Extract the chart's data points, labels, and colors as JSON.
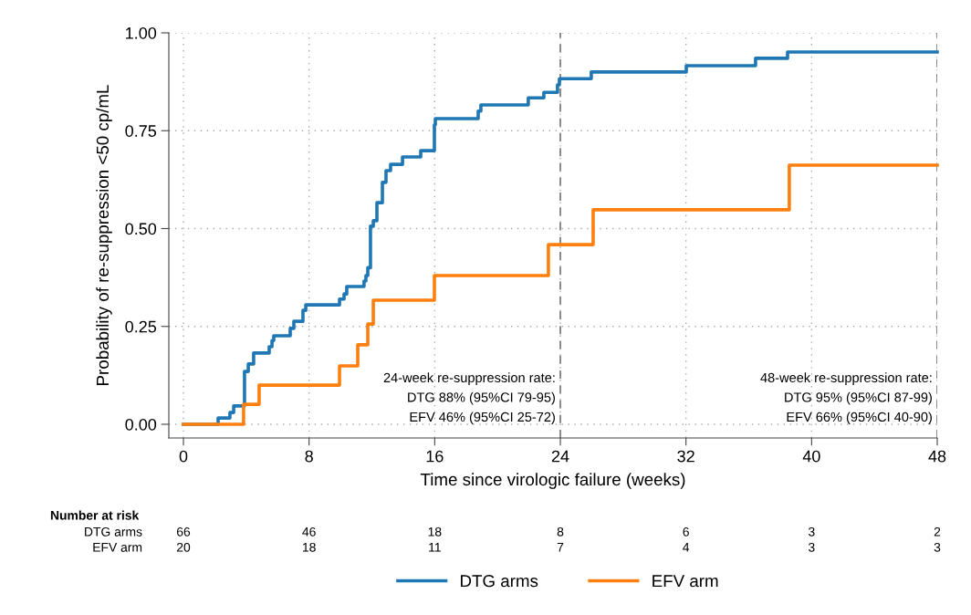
{
  "chart_data": {
    "type": "step",
    "xlabel": "Time since virologic failure (weeks)",
    "ylabel": "Probability of re-suppression <50 cp/mL",
    "xlim": [
      -0.93,
      48
    ],
    "ylim": [
      -0.035,
      1.0
    ],
    "xticks": [
      0,
      8,
      16,
      24,
      32,
      40,
      48
    ],
    "yticks": [
      {
        "value": 0,
        "label": "0.00"
      },
      {
        "value": 0.25,
        "label": "0.25"
      },
      {
        "value": 0.5,
        "label": "0.50"
      },
      {
        "value": 0.75,
        "label": "0.75"
      },
      {
        "value": 1,
        "label": "1.00"
      }
    ],
    "grid": true,
    "legend": "bottom",
    "line_style": "solid",
    "marker": "none",
    "series": [
      {
        "name": "DTG arms",
        "color": "#1f77b4",
        "x": [
          0,
          2.21,
          2.96,
          3.2,
          3.89,
          4.13,
          4.47,
          5.46,
          5.64,
          5.75,
          6.8,
          7.03,
          7.61,
          7.79,
          9.94,
          10.23,
          10.4,
          11.5,
          11.62,
          11.74,
          11.91,
          12.09,
          12.32,
          12.67,
          12.9,
          13.19,
          13.95,
          15.11,
          15.98,
          16.04,
          18.77,
          18.94,
          21.96,
          22.95,
          23.82,
          23.94,
          25.97,
          32.02,
          36.43,
          38.47,
          48
        ],
        "values": [
          0,
          0.016,
          0.03,
          0.047,
          0.135,
          0.154,
          0.182,
          0.198,
          0.214,
          0.226,
          0.245,
          0.263,
          0.291,
          0.305,
          0.32,
          0.333,
          0.352,
          0.366,
          0.38,
          0.4,
          0.506,
          0.52,
          0.566,
          0.618,
          0.648,
          0.664,
          0.683,
          0.699,
          0.765,
          0.781,
          0.8,
          0.816,
          0.834,
          0.848,
          0.867,
          0.883,
          0.9,
          0.916,
          0.935,
          0.951,
          0.951
        ]
      },
      {
        "name": "EFV arm",
        "color": "#ff7f0e",
        "x": [
          0,
          3.83,
          4.82,
          9.94,
          11.1,
          11.74,
          12.09,
          15.98,
          23.24,
          26.09,
          38.58,
          48
        ],
        "values": [
          0,
          0.051,
          0.1,
          0.149,
          0.203,
          0.256,
          0.317,
          0.38,
          0.459,
          0.548,
          0.662,
          0.662
        ]
      }
    ],
    "ref_lines": [
      {
        "axis": "x",
        "value": 24,
        "color": "#808080",
        "line_style": "dashed",
        "label": "24-week re-suppression rate:\nDTG 88% (95%CI 79-95)\nEFV 46% (95%CI 25-72)"
      },
      {
        "axis": "x",
        "value": 48,
        "color": "#808080",
        "line_style": "dashed",
        "label": "48-week re-suppression rate:\nDTG 95% (95%CI 87-99)\nEFV 66% (95%CI 40-90)"
      }
    ],
    "annotations": [
      "Number at risk",
      "DTG arms",
      "66",
      "46",
      "18",
      "8",
      "6",
      "3",
      "2",
      "EFV arm",
      "20",
      "18",
      "11",
      "7",
      "4",
      "3",
      "3"
    ]
  }
}
